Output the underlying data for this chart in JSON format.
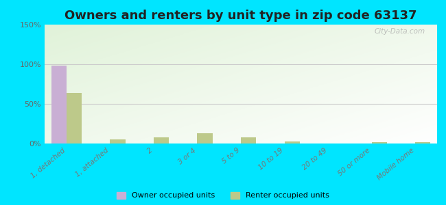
{
  "title": "Owners and renters by unit type in zip code 63137",
  "categories": [
    "1, detached",
    "1, attached",
    "2",
    "3 or 4",
    "5 to 9",
    "10 to 19",
    "20 to 49",
    "50 or more",
    "Mobile home"
  ],
  "owner_values": [
    98,
    0,
    0,
    0,
    0,
    0,
    0,
    0,
    0
  ],
  "renter_values": [
    64,
    5,
    8,
    13,
    8,
    3,
    0,
    2,
    2
  ],
  "owner_color": "#c9afd4",
  "renter_color": "#bdc98a",
  "background_color": "#00e5ff",
  "ylim": [
    0,
    150
  ],
  "yticks": [
    0,
    50,
    100,
    150
  ],
  "ytick_labels": [
    "0%",
    "50%",
    "100%",
    "150%"
  ],
  "title_fontsize": 13,
  "legend_labels": [
    "Owner occupied units",
    "Renter occupied units"
  ],
  "watermark": "City-Data.com"
}
